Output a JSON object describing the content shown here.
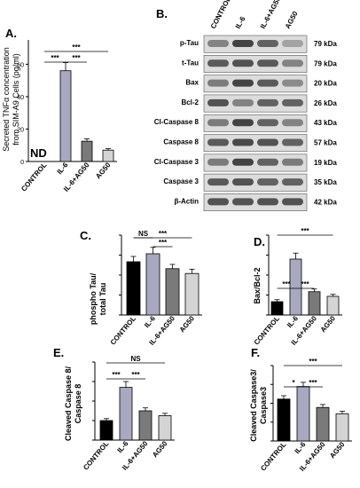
{
  "panel_labels": {
    "A": "A.",
    "B": "B.",
    "C": "C.",
    "D": "D.",
    "E": "E.",
    "F": "F."
  },
  "colors": {
    "control": "#000000",
    "il6": "#a8a8c0",
    "il6_ag50": "#7a7a7a",
    "ag50": "#d4d4d4",
    "blot_band": "#3a3a3a",
    "blot_bg": "#dcdcdc"
  },
  "panel_a": {
    "ylabel_lines": [
      "Secreted TNFα concentration",
      "from SIM-A9 Cells (pg/ml)"
    ],
    "nd_label": "ND",
    "sig": [
      "***",
      "***",
      "***"
    ]
  },
  "blot": {
    "columns": [
      "CONTROL",
      "IL-6",
      "IL-6+AG50",
      "AG50"
    ],
    "rows": [
      {
        "label": "p-Tau",
        "kda": "79 kDa"
      },
      {
        "label": "t-Tau",
        "kda": "79 kDa"
      },
      {
        "label": "Bax",
        "kda": "20 kDa"
      },
      {
        "label": "Bcl-2",
        "kda": "26 kDa"
      },
      {
        "label": "Cl-Caspase 8",
        "kda": "43 kDa"
      },
      {
        "label": "Caspase 8",
        "kda": "57 kDa"
      },
      {
        "label": "Cl-Caspase 3",
        "kda": "19 kDa"
      },
      {
        "label": "Caspase 3",
        "kda": "35 kDa"
      },
      {
        "label": "β-Actin",
        "kda": "42 kDa"
      }
    ]
  },
  "panel_c": {
    "ylabel_lines": [
      "phospho Tau/",
      "total Tau"
    ],
    "sig": [
      "NS",
      "***",
      "***"
    ]
  },
  "panel_d": {
    "ylabel_lines": [
      "Bax/Bcl-2"
    ],
    "sig": [
      "***",
      "***",
      "***"
    ]
  },
  "panel_e": {
    "ylabel_lines": [
      "Cleaved Caspase 8/",
      "Caspase 8"
    ],
    "sig": [
      "***",
      "***",
      "NS"
    ]
  },
  "panel_f": {
    "ylabel_lines": [
      "Cleaved Caspase3/",
      "Caspase3"
    ],
    "sig": [
      "*",
      "***",
      "***"
    ]
  },
  "chart_data": [
    {
      "panel": "A",
      "type": "bar",
      "categories": [
        "CONTROL",
        "IL-6",
        "IL-6+AG50",
        "AG50"
      ],
      "values": [
        0,
        56,
        12.5,
        7
      ],
      "errors": [
        0,
        5,
        1.5,
        1
      ],
      "ylim": [
        0,
        75
      ],
      "yticks": [
        0,
        20,
        40,
        60
      ],
      "ylabel": "Secreted TNFα concentration from SIM-A9 Cells (pg/ml)"
    },
    {
      "panel": "C",
      "type": "bar",
      "categories": [
        "CONTROL",
        "IL-6",
        "IL-6+AG50",
        "AG50"
      ],
      "values": [
        1.0,
        1.15,
        0.87,
        0.78
      ],
      "errors": [
        0.1,
        0.12,
        0.08,
        0.08
      ],
      "ylim": [
        0,
        1.5
      ],
      "ylabel": "phospho Tau/ total Tau"
    },
    {
      "panel": "D",
      "type": "bar",
      "categories": [
        "CONTROL",
        "IL-6",
        "IL-6+AG50",
        "AG50"
      ],
      "values": [
        1.0,
        4.2,
        1.75,
        1.4
      ],
      "errors": [
        0.15,
        0.45,
        0.2,
        0.15
      ],
      "ylim": [
        0,
        6
      ],
      "ylabel": "Bax/Bcl-2"
    },
    {
      "panel": "E",
      "type": "bar",
      "categories": [
        "CONTROL",
        "IL-6",
        "IL-6+AG50",
        "AG50"
      ],
      "values": [
        1.0,
        2.7,
        1.5,
        1.25
      ],
      "errors": [
        0.1,
        0.3,
        0.15,
        0.12
      ],
      "ylim": [
        0,
        4
      ],
      "ylabel": "Cleaved Caspase 8/ Caspase 8"
    },
    {
      "panel": "F",
      "type": "bar",
      "categories": [
        "CONTROL",
        "IL-6",
        "IL-6+AG50",
        "AG50"
      ],
      "values": [
        1.0,
        1.3,
        0.8,
        0.65
      ],
      "errors": [
        0.08,
        0.1,
        0.07,
        0.06
      ],
      "ylim": [
        0,
        1.8
      ],
      "ylabel": "Cleaved Caspase3/ Caspase3"
    }
  ]
}
